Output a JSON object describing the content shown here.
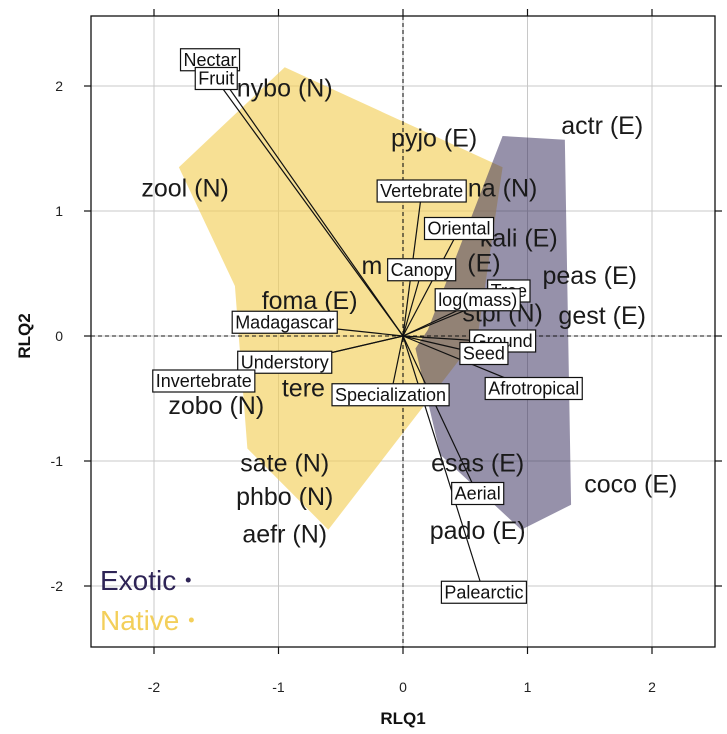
{
  "chart_data": {
    "type": "scatter",
    "xlabel": "RLQ1",
    "ylabel": "RLQ2",
    "xlim": [
      -2.5,
      2.6
    ],
    "ylim": [
      -2.5,
      2.5
    ],
    "x_ticks": [
      -2,
      -1,
      0,
      1,
      2
    ],
    "y_ticks": [
      -2,
      -1,
      0,
      1,
      2
    ],
    "x_tick_labels": [
      "-2",
      "-1",
      "0",
      "1",
      "2"
    ],
    "y_tick_labels": [
      "-2",
      "-1",
      "0",
      "1",
      "2"
    ],
    "grid": true,
    "reference_lines": "dashed lines at x = 0 and y = 0",
    "legend": {
      "placement": "bottom-left",
      "entries": [
        {
          "name": "Exotic",
          "color": "#2e2456"
        },
        {
          "name": "Native",
          "color": "#f3cf5a"
        }
      ]
    },
    "hulls": [
      {
        "group": "Native",
        "color": "#f3cf5a",
        "opacity": 0.65,
        "points": [
          [
            -1.8,
            1.35
          ],
          [
            -0.95,
            2.15
          ],
          [
            0.8,
            1.35
          ],
          [
            0.6,
            0.0
          ],
          [
            -0.6,
            -1.55
          ],
          [
            -1.25,
            -0.9
          ],
          [
            -1.35,
            0.4
          ]
        ]
      },
      {
        "group": "Exotic",
        "color": "#2e2456",
        "opacity": 0.5,
        "points": [
          [
            0.2,
            0.05
          ],
          [
            0.8,
            1.6
          ],
          [
            1.3,
            1.57
          ],
          [
            1.35,
            -1.35
          ],
          [
            0.95,
            -1.55
          ],
          [
            0.3,
            -0.95
          ],
          [
            0.1,
            -0.1
          ]
        ]
      }
    ],
    "species": [
      {
        "label": "nybo (N)",
        "x": -0.95,
        "y": 1.97,
        "group": "Native"
      },
      {
        "label": "zool (N)",
        "x": -1.75,
        "y": 1.17,
        "group": "Native"
      },
      {
        "label": "pyjo (E)",
        "x": 0.25,
        "y": 1.57,
        "group": "Exotic"
      },
      {
        "label": "actr (E)",
        "x": 1.6,
        "y": 1.67,
        "group": "Exotic"
      },
      {
        "label": "na (N)",
        "x": 0.8,
        "y": 1.17,
        "group": "Native"
      },
      {
        "label": "kali (E)",
        "x": 0.93,
        "y": 0.77,
        "group": "Exotic"
      },
      {
        "label": "m",
        "x": -0.25,
        "y": 0.55,
        "group": "Native"
      },
      {
        "label": "(E)",
        "x": 0.65,
        "y": 0.57,
        "group": "Exotic"
      },
      {
        "label": "peas (E)",
        "x": 1.5,
        "y": 0.47,
        "group": "Exotic"
      },
      {
        "label": "foma (E)",
        "x": -0.75,
        "y": 0.27,
        "group": "Exotic"
      },
      {
        "label": "stpi (N)",
        "x": 0.8,
        "y": 0.17,
        "group": "Native"
      },
      {
        "label": "gest (E)",
        "x": 1.6,
        "y": 0.15,
        "group": "Exotic"
      },
      {
        "label": "tere",
        "x": -0.8,
        "y": -0.43,
        "group": "Native"
      },
      {
        "label": "zobo (N)",
        "x": -1.5,
        "y": -0.57,
        "group": "Native"
      },
      {
        "label": "sate (N)",
        "x": -0.95,
        "y": -1.03,
        "group": "Native"
      },
      {
        "label": "esas (E)",
        "x": 0.6,
        "y": -1.03,
        "group": "Exotic"
      },
      {
        "label": "coco (E)",
        "x": 1.83,
        "y": -1.2,
        "group": "Exotic"
      },
      {
        "label": "phbo (N)",
        "x": -0.95,
        "y": -1.3,
        "group": "Native"
      },
      {
        "label": "pado (E)",
        "x": 0.6,
        "y": -1.57,
        "group": "Exotic"
      },
      {
        "label": "aefr (N)",
        "x": -0.95,
        "y": -1.6,
        "group": "Native"
      }
    ],
    "traits": [
      {
        "label": "Nectar",
        "x": -1.55,
        "y": 2.2
      },
      {
        "label": "Fruit",
        "x": -1.5,
        "y": 2.05
      },
      {
        "label": "Vertebrate",
        "x": 0.15,
        "y": 1.15
      },
      {
        "label": "Oriental",
        "x": 0.45,
        "y": 0.85
      },
      {
        "label": "Canopy",
        "x": 0.15,
        "y": 0.52
      },
      {
        "label": "Tree",
        "x": 0.85,
        "y": 0.35
      },
      {
        "label": "log(mass)",
        "x": 0.6,
        "y": 0.28
      },
      {
        "label": "Madagascar",
        "x": -0.95,
        "y": 0.1
      },
      {
        "label": "Ground",
        "x": 0.8,
        "y": -0.05
      },
      {
        "label": "Seed",
        "x": 0.65,
        "y": -0.15
      },
      {
        "label": "Understory",
        "x": -0.95,
        "y": -0.22
      },
      {
        "label": "Invertebrate",
        "x": -1.6,
        "y": -0.37
      },
      {
        "label": "Specialization",
        "x": -0.1,
        "y": -0.48
      },
      {
        "label": "Afrotropical",
        "x": 1.05,
        "y": -0.43
      },
      {
        "label": "Aerial",
        "x": 0.6,
        "y": -1.27
      },
      {
        "label": "Palearctic",
        "x": 0.65,
        "y": -2.06
      }
    ]
  }
}
